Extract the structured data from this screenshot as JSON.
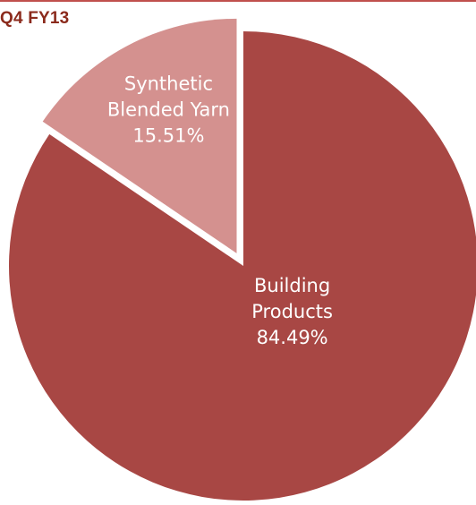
{
  "chart_data": {
    "type": "pie",
    "title": "Q4 FY13",
    "slices": [
      {
        "name": "Building Products",
        "label_lines": [
          "Building",
          "Products"
        ],
        "value": 84.49,
        "value_label": "84.49%",
        "color": "#a84744",
        "exploded": false
      },
      {
        "name": "Synthetic Blended Yarn",
        "label_lines": [
          "Synthetic",
          "Blended Yarn"
        ],
        "value": 15.51,
        "value_label": "15.51%",
        "color": "#d4918f",
        "exploded": true
      }
    ],
    "start_angle": "12 o'clock, clockwise",
    "legend": "none"
  }
}
